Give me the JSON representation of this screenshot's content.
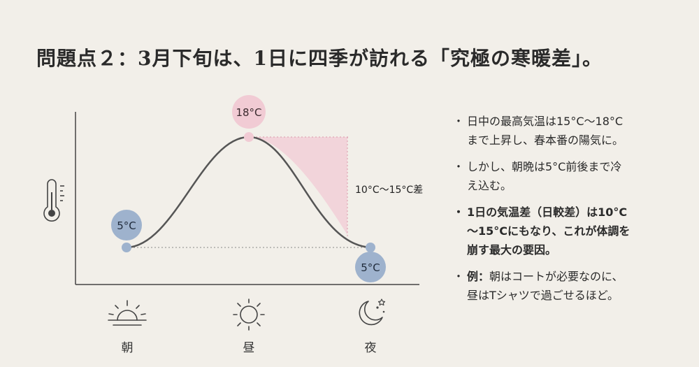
{
  "title": "問題点２：3月下旬は、1日に四季が訪れる「究極の寒暖差」。",
  "diagram": {
    "morning_temp": "5°C",
    "noon_temp": "18°C",
    "night_temp": "5°C",
    "range_label": "10°C〜15°C差",
    "morning_label": "朝",
    "noon_label": "昼",
    "night_label": "夜",
    "colors": {
      "warm": "#f1cbd4",
      "cold": "#9eb2cd",
      "curve": "#555555",
      "axis": "#444444"
    },
    "icons": [
      "thermometer-icon",
      "sunrise-icon",
      "sun-icon",
      "moon-stars-icon"
    ]
  },
  "bullets": [
    {
      "line1": "日中の最高気温は15°C〜18°C",
      "line2": "まで上昇し、春本番の陽気に。"
    },
    {
      "line1": "しかし、朝晩は5°C前後まで冷",
      "line2": "え込む。"
    },
    {
      "line1": "1日の気温差（日較差）は10°C",
      "line2": "〜15°Cにもなり、これが体調を",
      "line3": "崩す最大の要因。"
    },
    {
      "line1_bold": "例：",
      "line1": "朝はコートが必要なのに、",
      "line2": "昼はTシャツで過ごせるほど。"
    }
  ]
}
